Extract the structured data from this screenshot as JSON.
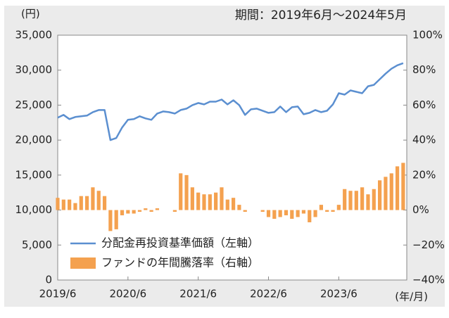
{
  "chart_data": {
    "type": "bar_line",
    "title": "期間：2019年6月～2024年5月",
    "ylabel": "(円)",
    "xlabel": "(年/月)",
    "categories": [
      "2019/6",
      null,
      null,
      null,
      null,
      null,
      null,
      null,
      null,
      null,
      null,
      null,
      "2020/6",
      null,
      null,
      null,
      null,
      null,
      null,
      null,
      null,
      null,
      null,
      null,
      "2021/6",
      null,
      null,
      null,
      null,
      null,
      null,
      null,
      null,
      null,
      null,
      null,
      "2022/6",
      null,
      null,
      null,
      null,
      null,
      null,
      null,
      null,
      null,
      null,
      null,
      "2023/6",
      null,
      null,
      null,
      null,
      null,
      null,
      null,
      null,
      null,
      null,
      null
    ],
    "series": [
      {
        "name": "分配金再投資基準価額（左軸）",
        "color": "#5b8fd0",
        "kind": "line",
        "axis": "y",
        "values": [
          23200,
          23600,
          23000,
          23300,
          23400,
          23500,
          24000,
          24300,
          24300,
          20000,
          20300,
          21800,
          22900,
          23000,
          23400,
          23100,
          22900,
          23800,
          24100,
          24000,
          23800,
          24300,
          24500,
          25000,
          25300,
          25100,
          25500,
          25500,
          25800,
          25100,
          25700,
          25000,
          23600,
          24400,
          24500,
          24200,
          23900,
          24000,
          24800,
          24000,
          24700,
          24800,
          23700,
          23900,
          24300,
          24000,
          24200,
          25100,
          26700,
          26500,
          27100,
          26900,
          26700,
          27700,
          27900,
          28700,
          29500,
          30200,
          30700,
          31000
        ]
      },
      {
        "name": "ファンドの年間騰落率（右軸）",
        "color": "#f4a14f",
        "kind": "bar",
        "axis": "y2",
        "values": [
          7,
          6,
          6,
          4,
          8,
          8,
          13,
          11,
          8,
          -12,
          -11,
          -3,
          -2,
          -2,
          -1,
          1,
          -1,
          1,
          0,
          0,
          -1,
          21,
          20,
          13,
          10,
          9,
          9,
          10,
          13,
          6,
          7,
          3,
          -1,
          0,
          0,
          -1,
          -4,
          -5,
          -4,
          -3,
          -5,
          -4,
          -2,
          -7,
          -4,
          3,
          -1,
          -1,
          3,
          12,
          11,
          11,
          13,
          9,
          12,
          17,
          19,
          21,
          25,
          27
        ]
      }
    ],
    "ylim": [
      0,
      35000
    ],
    "yticks": [
      0,
      {
        "value": 5000,
        "label": "5,000"
      },
      {
        "value": 10000,
        "label": "10,000"
      },
      {
        "value": 15000,
        "label": "15,000"
      },
      {
        "value": 20000,
        "label": "20,000"
      },
      {
        "value": 25000,
        "label": "25,000"
      },
      {
        "value": 30000,
        "label": "30,000"
      },
      {
        "value": 35000,
        "label": "35,000"
      }
    ],
    "y2lim": [
      -40,
      100
    ],
    "y2ticks": [
      {
        "value": -40,
        "label": "−40%"
      },
      {
        "value": -20,
        "label": "−20%"
      },
      {
        "value": 0,
        "label": "0%"
      },
      {
        "value": 20,
        "label": "20%"
      },
      {
        "value": 40,
        "label": "40%"
      },
      {
        "value": 60,
        "label": "60%"
      },
      {
        "value": 80,
        "label": "80%"
      },
      {
        "value": 100,
        "label": "100%"
      }
    ]
  }
}
